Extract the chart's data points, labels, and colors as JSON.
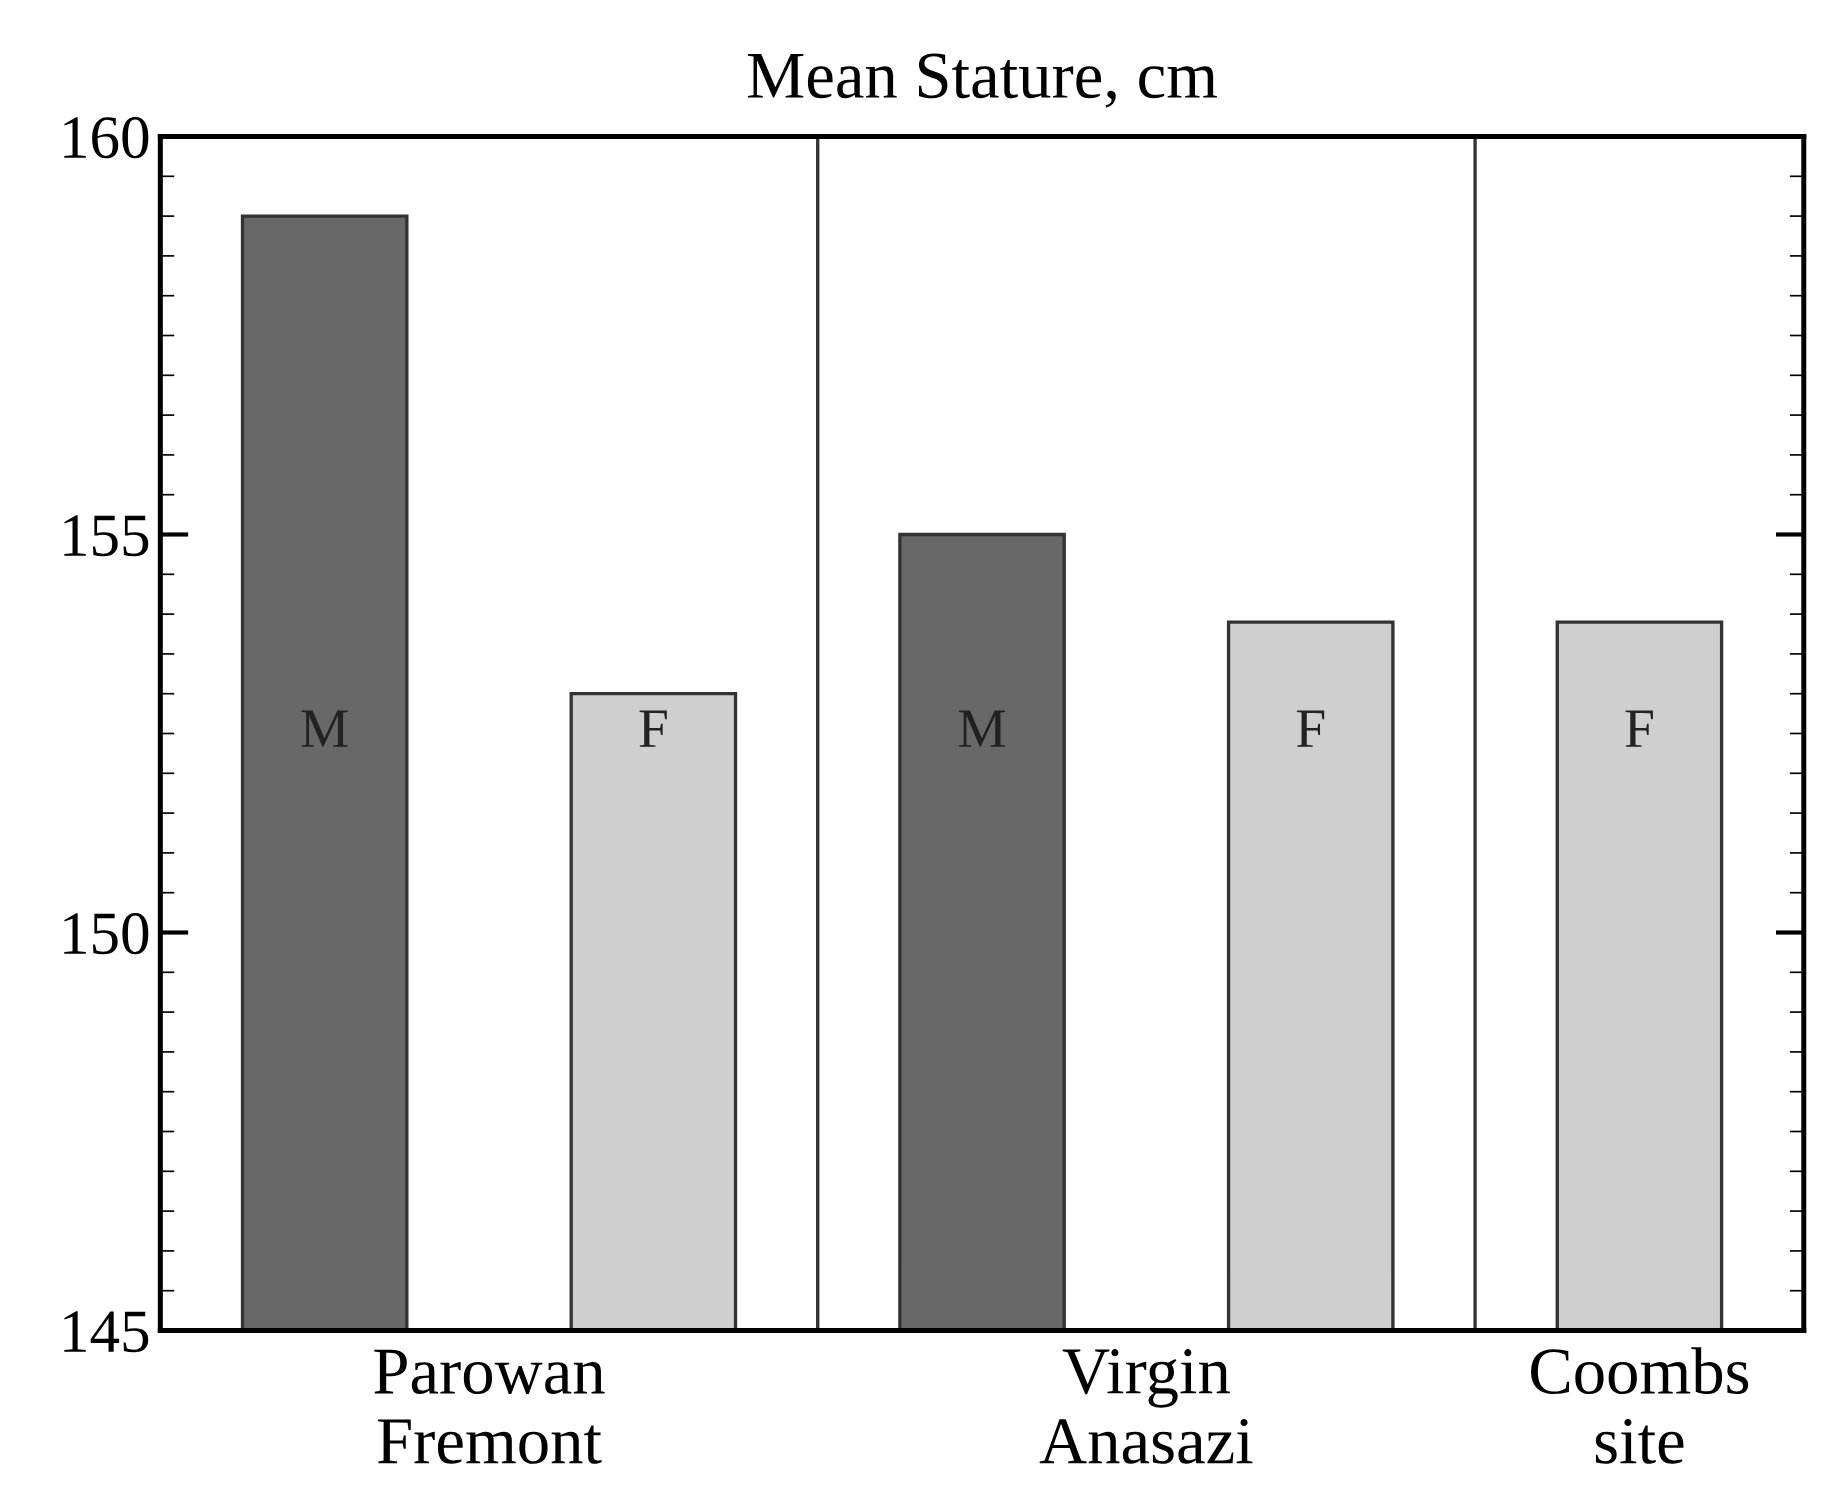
{
  "chart_data": {
    "type": "bar",
    "title": "Mean Stature, cm",
    "categories": [
      "Parowan\nFremont",
      "Virgin\nAnasazi",
      "Coombs\nsite"
    ],
    "series": [
      {
        "name": "M",
        "color": "#686868",
        "values": [
          159,
          155,
          null
        ]
      },
      {
        "name": "F",
        "color": "#cfcfcf",
        "values": [
          153,
          153.9,
          153.9
        ]
      }
    ],
    "ylim": [
      145,
      160
    ],
    "yticks": [
      145,
      150,
      155,
      160
    ],
    "grid": false,
    "legend": false
  }
}
